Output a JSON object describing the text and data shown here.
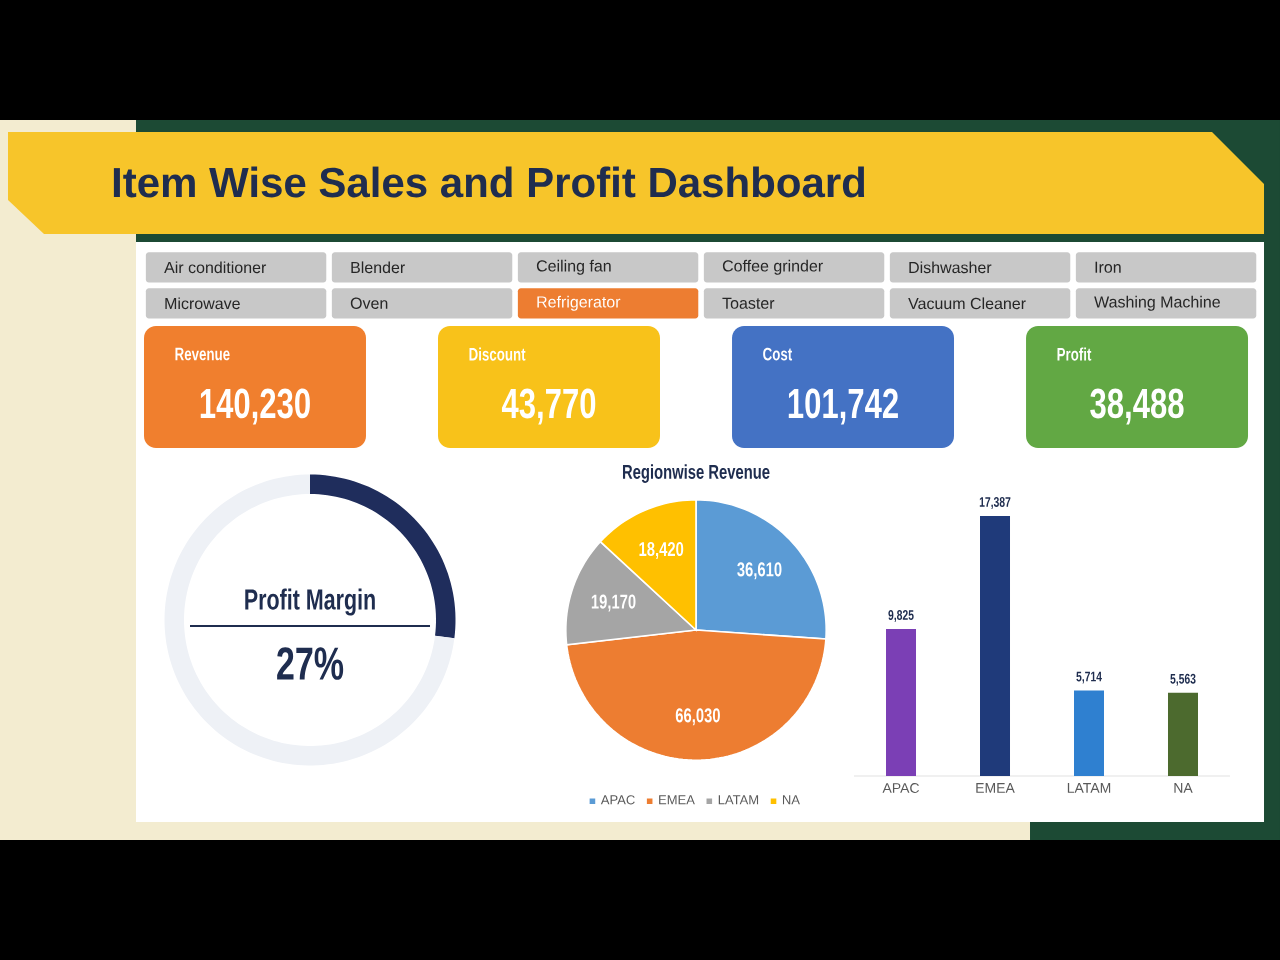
{
  "chart_data": [
    {
      "type": "other",
      "title": "Item Wise Sales and Profit Dashboard",
      "categories": [
        "Air conditioner",
        "Blender",
        "Ceiling fan",
        "Coffee grinder",
        "Dishwasher",
        "Iron",
        "Microwave",
        "Oven",
        "Refrigerator",
        "Toaster",
        "Vacuum Cleaner",
        "Washing Machine"
      ],
      "colors": [
        "#c8c8c8",
        "#c8c8c8",
        "#c8c8c8",
        "#c8c8c8",
        "#c8c8c8",
        "#c8c8c8",
        "#c8c8c8",
        "#c8c8c8",
        "#ed7d31",
        "#c8c8c8",
        "#c8c8c8",
        "#c8c8c8"
      ]
    },
    {
      "type": "other",
      "categories": [
        "Revenue",
        "Discount",
        "Cost",
        "Profit"
      ],
      "values": [
        140230,
        43770,
        101742,
        38488
      ],
      "value_labels": [
        "140,230",
        "43,770",
        "101,742",
        "38,488"
      ],
      "colors": [
        "#f07f2e",
        "#f8c21a",
        "#4472c4",
        "#62a844"
      ]
    },
    {
      "type": "donut",
      "title": "Profit Margin",
      "categories": [
        null,
        null
      ],
      "values": [
        27,
        73
      ],
      "colors": [
        "#1f2d5c",
        "#eef1f6"
      ],
      "annotations": [
        "27%"
      ]
    },
    {
      "type": "pie",
      "title": "Regionwise Revenue",
      "categories": [
        "APAC",
        "EMEA",
        "LATAM",
        "NA"
      ],
      "values": [
        36610,
        66030,
        19170,
        18420
      ],
      "value_labels": [
        "36,610",
        "66,030",
        "19,170",
        "18,420"
      ],
      "colors": [
        "#5b9bd5",
        "#ed7d31",
        "#a5a5a5",
        "#ffc000"
      ],
      "legend": "bottom"
    },
    {
      "type": "bar",
      "categories": [
        "APAC",
        "EMEA",
        "LATAM",
        "NA"
      ],
      "values": [
        9825,
        17387,
        5714,
        5563
      ],
      "value_labels": [
        "9,825",
        "17,387",
        "5,714",
        "5,563"
      ],
      "colors": [
        "#7b3fb5",
        "#1f3a7a",
        "#2f80d0",
        "#4c6a2e"
      ]
    }
  ]
}
